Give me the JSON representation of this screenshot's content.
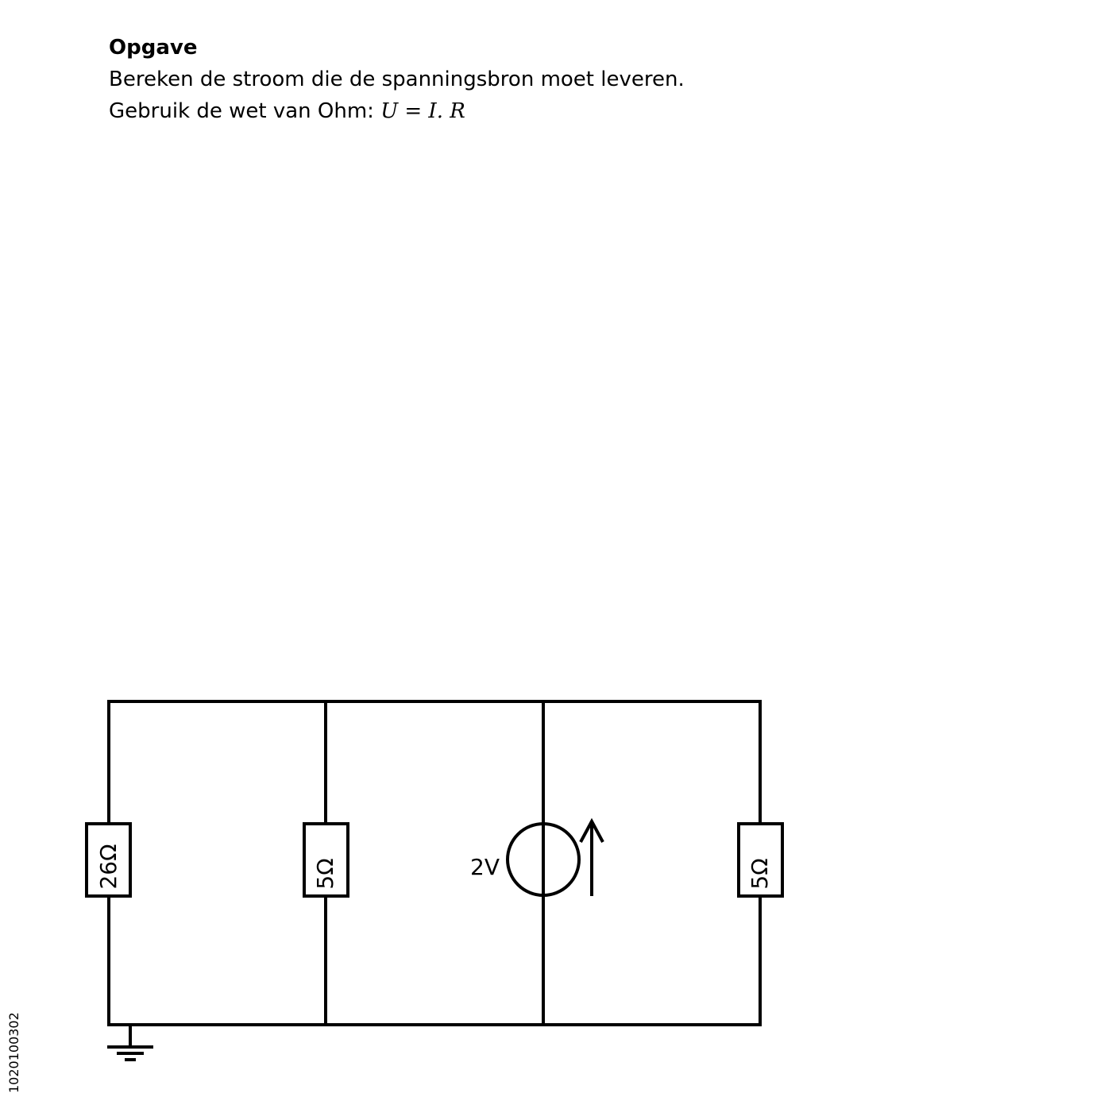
{
  "task": {
    "title": "Opgave",
    "line1": "Bereken de stroom die de spanningsbron moet leveren.",
    "line2_prefix": "Gebruik de wet van Ohm: ",
    "formula": "U = I. R"
  },
  "circuit": {
    "resistor_1": "26Ω",
    "resistor_2": "5Ω",
    "source_label": "2V",
    "resistor_3": "5Ω"
  },
  "code": "1020100302"
}
